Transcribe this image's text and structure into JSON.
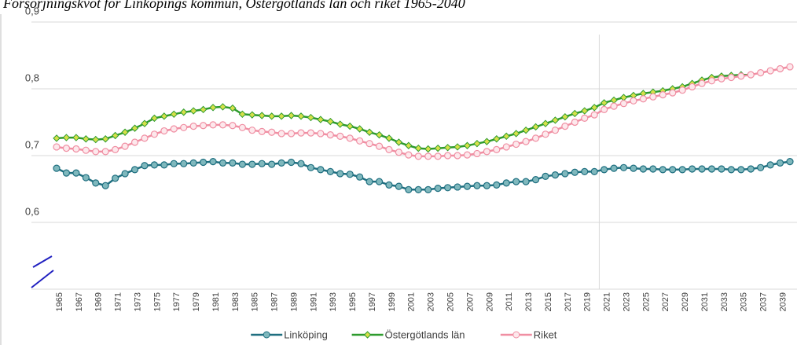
{
  "chart_data": {
    "type": "line",
    "title": "Försörjningskvot för Linköpings kommun, Östergötlands län och riket 1965-2040",
    "categories": [
      "1965",
      null,
      "1967",
      null,
      "1969",
      null,
      "1971",
      null,
      "1973",
      null,
      "1975",
      null,
      "1977",
      null,
      "1979",
      null,
      "1981",
      null,
      "1983",
      null,
      "1985",
      null,
      "1987",
      null,
      "1989",
      null,
      "1991",
      null,
      "1993",
      null,
      "1995",
      null,
      "1997",
      null,
      "1999",
      null,
      "2001",
      null,
      "2003",
      null,
      "2005",
      null,
      "2007",
      null,
      "2009",
      null,
      "2011",
      null,
      "2013",
      null,
      "2015",
      null,
      "2017",
      null,
      "2019",
      null,
      "2021",
      null,
      "2023",
      null,
      "2025",
      null,
      "2027",
      null,
      "2029",
      null,
      "2031",
      null,
      "2033",
      null,
      "2035",
      null,
      "2037",
      null,
      "2039",
      null
    ],
    "series": [
      {
        "name": "Linköping",
        "color": "#1f6f80",
        "marker_fill": "#7fb8bd",
        "marker": "circle",
        "values": [
          0.681,
          0.674,
          0.674,
          0.667,
          0.659,
          0.655,
          0.666,
          0.673,
          0.679,
          0.685,
          0.686,
          0.686,
          0.688,
          0.688,
          0.689,
          0.69,
          0.691,
          0.689,
          0.689,
          0.687,
          0.687,
          0.688,
          0.687,
          0.689,
          0.69,
          0.688,
          0.682,
          0.679,
          0.676,
          0.673,
          0.672,
          0.668,
          0.661,
          0.661,
          0.656,
          0.654,
          0.649,
          0.649,
          0.649,
          0.651,
          0.652,
          0.653,
          0.654,
          0.655,
          0.655,
          0.656,
          0.659,
          0.661,
          0.661,
          0.664,
          0.669,
          0.671,
          0.673,
          0.675,
          0.676,
          0.676,
          0.679,
          0.681,
          0.682,
          0.681,
          0.68,
          0.68,
          0.679,
          0.679,
          0.679,
          0.68,
          0.68,
          0.68,
          0.68,
          0.679,
          0.679,
          0.68,
          0.682,
          0.686,
          0.689,
          0.691
        ]
      },
      {
        "name": "Östergötlands län",
        "color": "#2e9b2e",
        "marker_fill": "#d6e04a",
        "marker": "diamond",
        "values": [
          0.726,
          0.727,
          0.727,
          0.725,
          0.724,
          0.725,
          0.73,
          0.735,
          0.741,
          0.748,
          0.756,
          0.759,
          0.762,
          0.765,
          0.767,
          0.769,
          0.772,
          0.773,
          0.771,
          0.762,
          0.761,
          0.76,
          0.759,
          0.759,
          0.76,
          0.759,
          0.757,
          0.754,
          0.751,
          0.747,
          0.744,
          0.74,
          0.735,
          0.731,
          0.726,
          0.72,
          0.715,
          0.711,
          0.71,
          0.711,
          0.712,
          0.713,
          0.715,
          0.718,
          0.721,
          0.725,
          0.729,
          0.733,
          0.738,
          0.743,
          0.748,
          0.753,
          0.758,
          0.763,
          0.767,
          0.772,
          0.779,
          0.783,
          0.787,
          0.79,
          0.793,
          0.795,
          0.797,
          0.8,
          0.803,
          0.808,
          0.813,
          0.817,
          0.819,
          0.82,
          0.821,
          0.821,
          null,
          null,
          null,
          null
        ]
      },
      {
        "name": "Riket",
        "color": "#f08fa3",
        "marker_fill": "#fde8ec",
        "marker": "circle",
        "values": [
          0.713,
          0.711,
          0.71,
          0.708,
          0.706,
          0.706,
          0.709,
          0.714,
          0.72,
          0.726,
          0.732,
          0.737,
          0.74,
          0.742,
          0.744,
          0.745,
          0.746,
          0.746,
          0.745,
          0.742,
          0.738,
          0.736,
          0.735,
          0.733,
          0.733,
          0.734,
          0.734,
          0.733,
          0.731,
          0.729,
          0.726,
          0.722,
          0.718,
          0.714,
          0.709,
          0.705,
          0.701,
          0.699,
          0.699,
          0.699,
          0.7,
          0.7,
          0.701,
          0.703,
          0.706,
          0.709,
          0.713,
          0.717,
          0.721,
          0.726,
          0.732,
          0.738,
          0.744,
          0.75,
          0.756,
          0.761,
          0.769,
          0.774,
          0.778,
          0.782,
          0.785,
          0.788,
          0.791,
          0.794,
          0.798,
          0.803,
          0.808,
          0.812,
          0.815,
          0.817,
          0.819,
          0.821,
          0.824,
          0.827,
          0.83,
          0.833
        ]
      }
    ],
    "ylim": [
      0.5,
      0.9
    ],
    "yticks": [
      {
        "value": 0.6,
        "label": "0,6"
      },
      {
        "value": 0.7,
        "label": "0,7"
      },
      {
        "value": 0.8,
        "label": "0,8"
      },
      {
        "value": 0.9,
        "label": "0,9"
      }
    ],
    "grid": true,
    "legend": "bottom"
  }
}
